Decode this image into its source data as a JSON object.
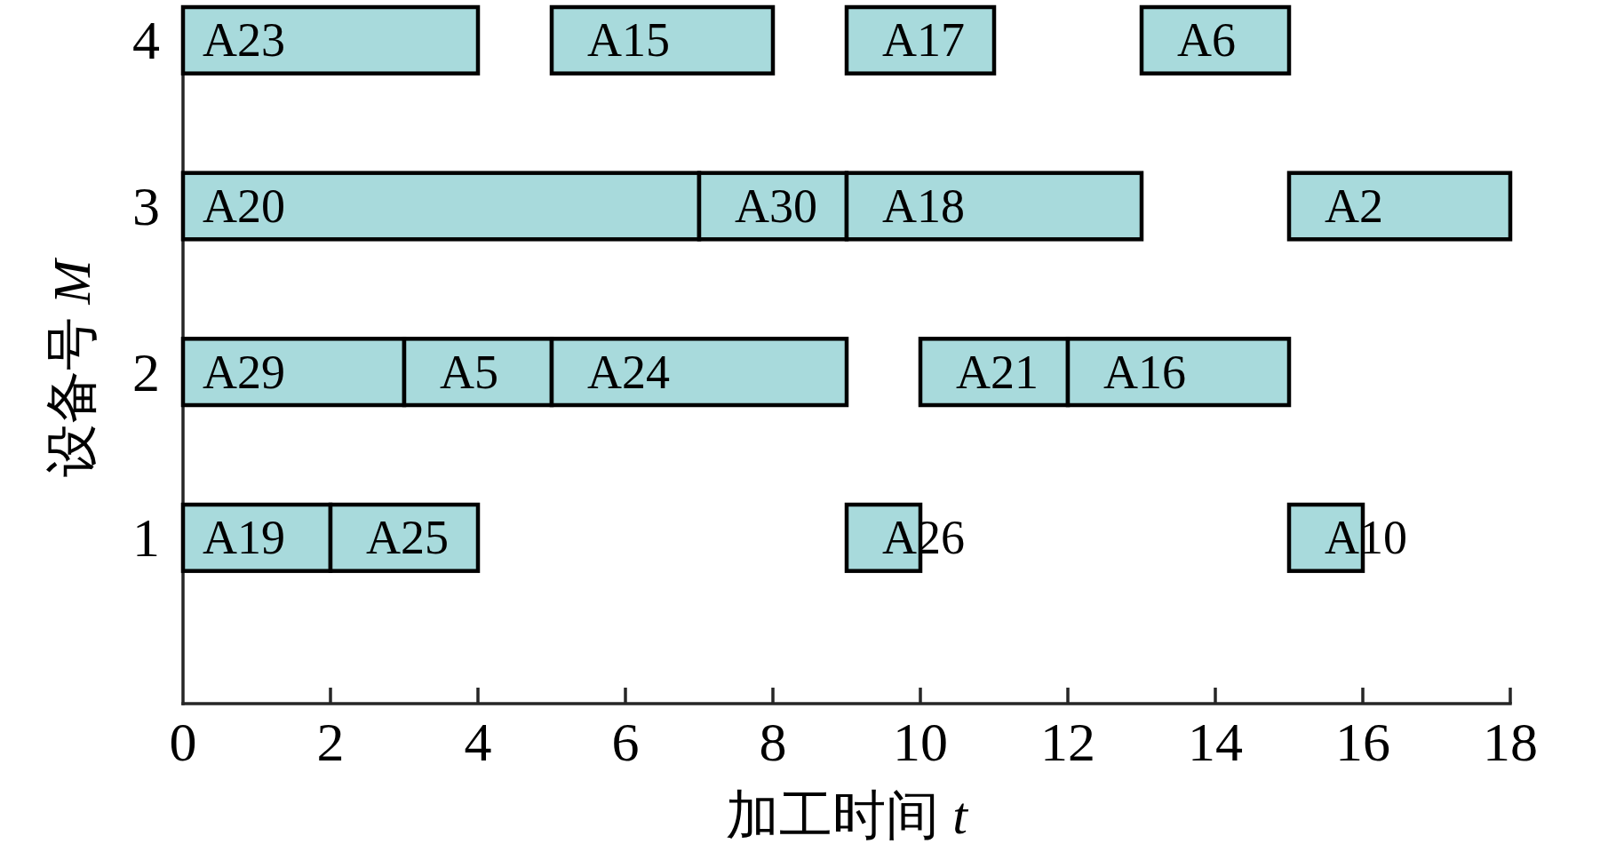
{
  "chart_data": {
    "type": "bar",
    "orientation": "horizontal",
    "xlabel": "加工时间 t",
    "ylabel": "设备号 M",
    "categories": [
      "4",
      "3",
      "2",
      "1"
    ],
    "xlim": [
      0,
      18
    ],
    "xticks": [
      0,
      2,
      4,
      6,
      8,
      10,
      12,
      14,
      16,
      18
    ],
    "series": [
      {
        "color": "#a8dadc",
        "base": [
          0,
          0,
          0,
          0
        ],
        "values": [
          4,
          7,
          3,
          2
        ],
        "value_labels": [
          "A23",
          "A20",
          "A29",
          "A19"
        ]
      },
      {
        "color": "#a8dadc",
        "base": [
          5,
          7,
          3,
          2
        ],
        "values": [
          3,
          2,
          2,
          2
        ],
        "value_labels": [
          "A15",
          "A30",
          "A5",
          "A25"
        ]
      },
      {
        "color": "#a8dadc",
        "base": [
          9,
          9,
          5,
          9
        ],
        "values": [
          2,
          4,
          4,
          1
        ],
        "value_labels": [
          "A17",
          "A18",
          "A24",
          "A26"
        ]
      },
      {
        "color": "#a8dadc",
        "base": [
          13,
          15,
          10,
          15
        ],
        "values": [
          2,
          3,
          2,
          1
        ],
        "value_labels": [
          "A6",
          "A2",
          "A21",
          "A10"
        ]
      },
      {
        "color": "#a8dadc",
        "base": [
          null,
          null,
          12,
          null
        ],
        "values": [
          null,
          null,
          3,
          null
        ],
        "value_labels": [
          null,
          null,
          "A16",
          null
        ]
      }
    ]
  }
}
